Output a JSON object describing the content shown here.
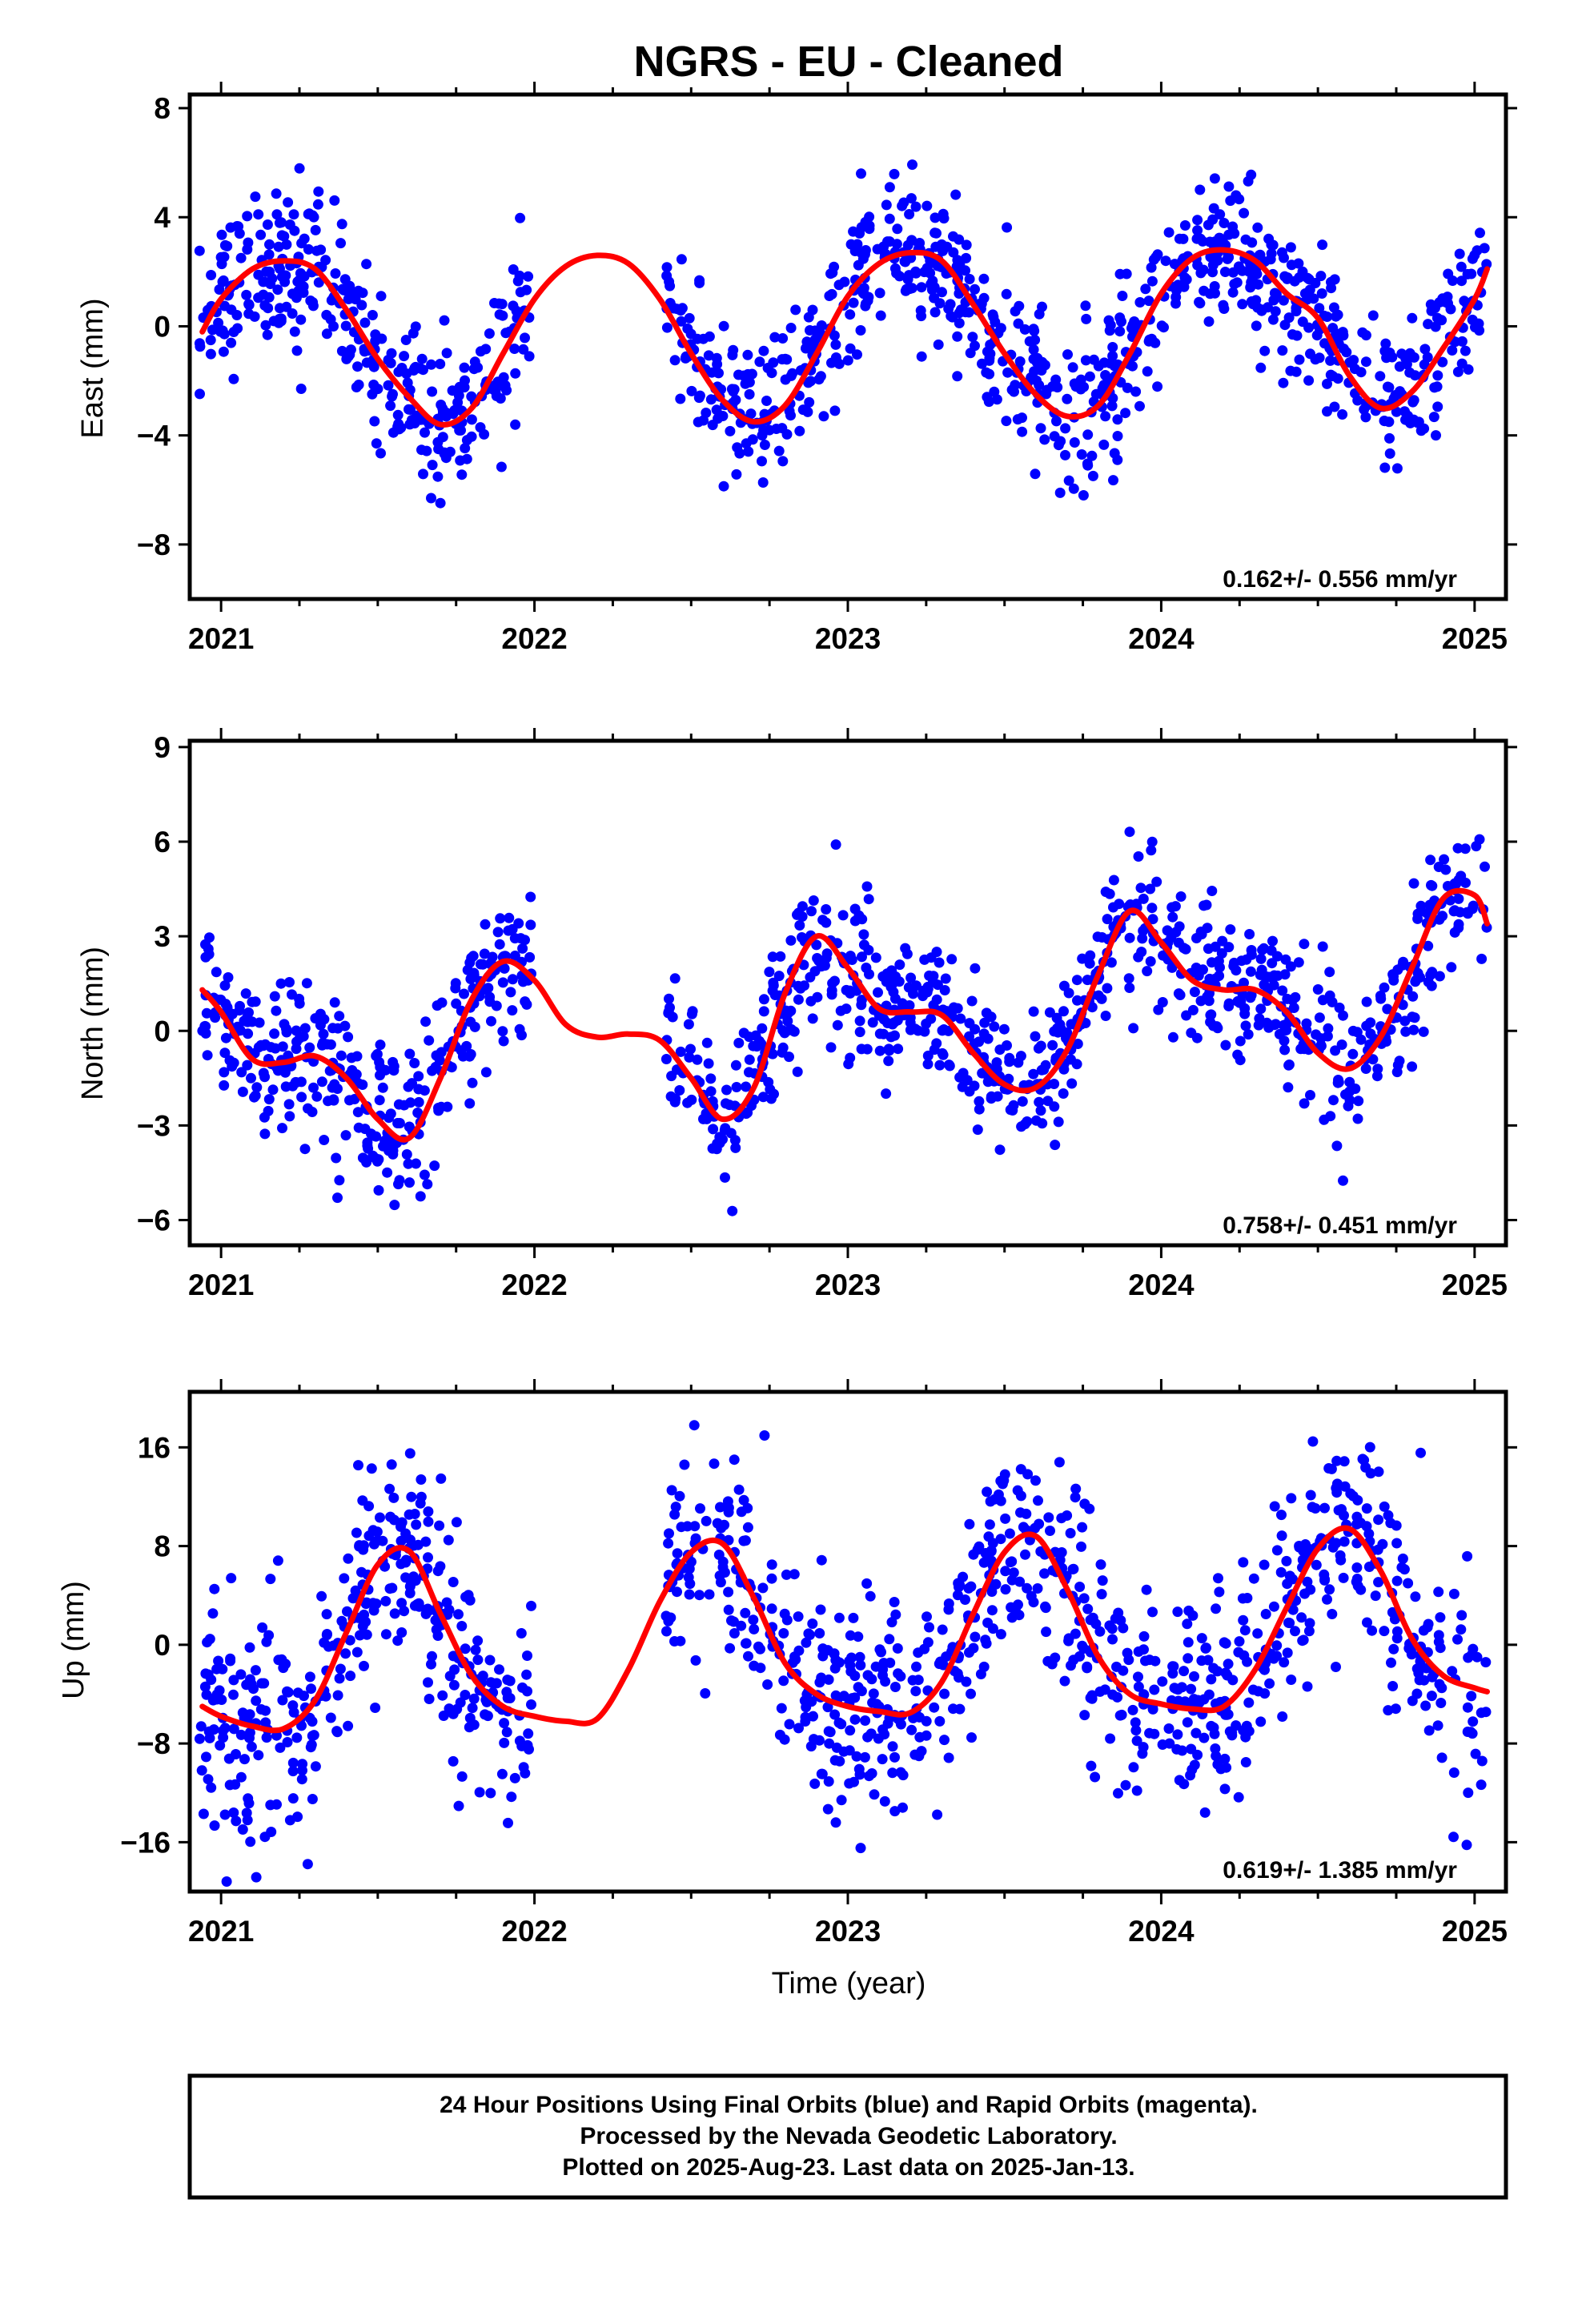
{
  "title": "NGRS  - EU - Cleaned",
  "x_axis_label": "Time (year)",
  "footer": {
    "line1": "24 Hour Positions Using Final Orbits (blue) and Rapid Orbits (magenta).",
    "line2": "Processed by the Nevada Geodetic Laboratory.",
    "line3": "Plotted on 2025-Aug-23. Last data on 2025-Jan-13."
  },
  "colors": {
    "data_points": "#0000ff",
    "model_curve": "#ff0000",
    "frame": "#000000"
  },
  "chart_data": [
    {
      "type": "scatter",
      "ylabel": "East (mm)",
      "rate_label": "0.162+/- 0.556 mm/yr",
      "xlim": [
        2020.9,
        2025.1
      ],
      "ylim": [
        -10,
        8.5
      ],
      "yticks": [
        "8",
        "4",
        "0",
        "−4",
        "−8"
      ],
      "ytick_values": [
        8,
        4,
        0,
        -4,
        -8
      ],
      "xticks": [
        "2021",
        "2022",
        "2023",
        "2024",
        "2025"
      ],
      "xtick_values": [
        2021,
        2022,
        2023,
        2024,
        2025
      ],
      "model": {
        "x": [
          2020.94,
          2021.0,
          2021.1,
          2021.2,
          2021.3,
          2021.4,
          2021.5,
          2021.6,
          2021.7,
          2021.8,
          2021.9,
          2022.0,
          2022.1,
          2022.2,
          2022.3,
          2022.4,
          2022.5,
          2022.6,
          2022.7,
          2022.8,
          2022.9,
          2023.0,
          2023.1,
          2023.2,
          2023.3,
          2023.4,
          2023.5,
          2023.6,
          2023.7,
          2023.8,
          2023.9,
          2024.0,
          2024.1,
          2024.2,
          2024.3,
          2024.4,
          2024.5,
          2024.6,
          2024.7,
          2024.8,
          2024.9,
          2025.0,
          2025.04
        ],
        "y": [
          -0.2,
          1.0,
          2.1,
          2.4,
          2.1,
          0.6,
          -1.2,
          -2.6,
          -3.6,
          -3.0,
          -1.0,
          1.0,
          2.2,
          2.6,
          2.3,
          1.0,
          -1.0,
          -2.7,
          -3.5,
          -2.9,
          -1.0,
          1.1,
          2.3,
          2.7,
          2.4,
          0.8,
          -1.0,
          -2.5,
          -3.3,
          -2.9,
          -1.0,
          1.2,
          2.5,
          2.8,
          2.4,
          1.2,
          0.3,
          -1.8,
          -3.0,
          -2.4,
          -0.8,
          1.0,
          2.1
        ]
      },
      "clusters": [
        {
          "x": [
            2020.93,
            2021.25
          ],
          "amp": 2.4,
          "phase": 0.0,
          "sd": 1.4,
          "n": 110
        },
        {
          "x": [
            2021.25,
            2021.75
          ],
          "amp": 2.4,
          "phase": 0.0,
          "sd": 1.3,
          "n": 160
        },
        {
          "x": [
            2021.75,
            2021.99
          ],
          "amp": 2.4,
          "phase": 0.0,
          "sd": 1.4,
          "n": 70
        },
        {
          "x": [
            2022.42,
            2022.99
          ],
          "amp": 2.6,
          "phase": 0.0,
          "sd": 1.3,
          "n": 170
        },
        {
          "x": [
            2023.0,
            2023.4
          ],
          "amp": 3.4,
          "phase": 0.9,
          "sd": 1.3,
          "n": 150
        },
        {
          "x": [
            2023.4,
            2023.99
          ],
          "amp": 3.3,
          "phase": -0.8,
          "sd": 1.5,
          "n": 180
        },
        {
          "x": [
            2024.0,
            2024.45
          ],
          "amp": 2.8,
          "phase": 0.8,
          "sd": 1.3,
          "n": 150
        },
        {
          "x": [
            2024.45,
            2025.04
          ],
          "amp": 2.8,
          "phase": -0.2,
          "sd": 1.4,
          "n": 170
        }
      ]
    },
    {
      "type": "scatter",
      "ylabel": "North (mm)",
      "rate_label": "0.758+/- 0.451 mm/yr",
      "xlim": [
        2020.9,
        2025.1
      ],
      "ylim": [
        -6.8,
        9.2
      ],
      "yticks": [
        "9",
        "6",
        "3",
        "0",
        "−3",
        "−6"
      ],
      "ytick_values": [
        9,
        6,
        3,
        0,
        -3,
        -6
      ],
      "xticks": [
        "2021",
        "2022",
        "2023",
        "2024",
        "2025"
      ],
      "xtick_values": [
        2021,
        2022,
        2023,
        2024,
        2025
      ],
      "model": {
        "x": [
          2020.94,
          2021.0,
          2021.1,
          2021.2,
          2021.3,
          2021.4,
          2021.5,
          2021.6,
          2021.7,
          2021.8,
          2021.9,
          2022.0,
          2022.1,
          2022.2,
          2022.3,
          2022.4,
          2022.5,
          2022.6,
          2022.7,
          2022.8,
          2022.9,
          2023.0,
          2023.1,
          2023.2,
          2023.3,
          2023.4,
          2023.5,
          2023.6,
          2023.7,
          2023.8,
          2023.9,
          2024.0,
          2024.1,
          2024.2,
          2024.3,
          2024.4,
          2024.5,
          2024.6,
          2024.7,
          2024.8,
          2024.9,
          2025.0,
          2025.04
        ],
        "y": [
          1.3,
          0.6,
          -0.9,
          -1.0,
          -0.8,
          -1.5,
          -2.8,
          -3.4,
          -1.5,
          1.0,
          2.2,
          1.6,
          0.2,
          -0.2,
          -0.1,
          -0.3,
          -1.5,
          -2.8,
          -1.8,
          1.2,
          3.0,
          2.0,
          0.7,
          0.6,
          0.5,
          -0.7,
          -1.7,
          -1.8,
          -0.6,
          1.8,
          3.8,
          2.8,
          1.6,
          1.3,
          1.3,
          0.6,
          -0.7,
          -1.2,
          -0.2,
          2.0,
          4.2,
          4.3,
          3.4
        ]
      },
      "clusters": [
        {
          "x": [
            2020.93,
            2021.35
          ],
          "amp": 0.0,
          "phase": 0.0,
          "sd": 1.1,
          "n": 130
        },
        {
          "x": [
            2021.35,
            2021.99
          ],
          "amp": 0.0,
          "phase": 0.0,
          "sd": 1.2,
          "n": 210
        },
        {
          "x": [
            2022.42,
            2022.75
          ],
          "amp": 0.0,
          "phase": 0.0,
          "sd": 1.1,
          "n": 90
        },
        {
          "x": [
            2022.75,
            2023.1
          ],
          "amp": 0.0,
          "phase": 0.0,
          "sd": 1.3,
          "n": 120
        },
        {
          "x": [
            2023.1,
            2023.7
          ],
          "amp": 0.0,
          "phase": 0.0,
          "sd": 1.1,
          "n": 200
        },
        {
          "x": [
            2023.7,
            2024.2
          ],
          "amp": 0.0,
          "phase": 0.0,
          "sd": 1.2,
          "n": 150
        },
        {
          "x": [
            2024.2,
            2024.75
          ],
          "amp": 0.0,
          "phase": 0.0,
          "sd": 1.1,
          "n": 160
        },
        {
          "x": [
            2024.75,
            2025.04
          ],
          "amp": 0.0,
          "phase": 0.0,
          "sd": 1.2,
          "n": 80
        }
      ]
    },
    {
      "type": "scatter",
      "ylabel": "Up (mm)",
      "rate_label": "0.619+/- 1.385 mm/yr",
      "xlim": [
        2020.9,
        2025.1
      ],
      "ylim": [
        -20,
        20.5
      ],
      "yticks": [
        "16",
        "8",
        "0",
        "−8",
        "−16"
      ],
      "ytick_values": [
        16,
        8,
        0,
        -8,
        -16
      ],
      "xticks": [
        "2021",
        "2022",
        "2023",
        "2024",
        "2025"
      ],
      "xtick_values": [
        2021,
        2022,
        2023,
        2024,
        2025
      ],
      "model": {
        "x": [
          2020.94,
          2021.0,
          2021.1,
          2021.2,
          2021.3,
          2021.4,
          2021.5,
          2021.6,
          2021.7,
          2021.8,
          2021.9,
          2022.0,
          2022.1,
          2022.2,
          2022.3,
          2022.4,
          2022.5,
          2022.6,
          2022.7,
          2022.8,
          2022.9,
          2023.0,
          2023.1,
          2023.2,
          2023.3,
          2023.4,
          2023.5,
          2023.6,
          2023.7,
          2023.8,
          2023.9,
          2024.0,
          2024.1,
          2024.2,
          2024.3,
          2024.4,
          2024.5,
          2024.6,
          2024.7,
          2024.8,
          2024.9,
          2025.0,
          2025.04
        ],
        "y": [
          -5.0,
          -5.8,
          -6.6,
          -6.8,
          -4.5,
          1.0,
          6.5,
          7.6,
          2.5,
          -2.5,
          -5.0,
          -5.8,
          -6.2,
          -6.0,
          -2.0,
          3.5,
          7.5,
          8.2,
          3.8,
          -1.5,
          -4.0,
          -5.0,
          -5.4,
          -5.5,
          -3.0,
          2.5,
          7.5,
          8.8,
          4.5,
          -1.0,
          -4.0,
          -4.8,
          -5.2,
          -5.0,
          -2.0,
          3.0,
          7.8,
          9.4,
          6.0,
          0.5,
          -2.5,
          -3.5,
          -3.8
        ]
      },
      "clusters": [
        {
          "x": [
            2020.93,
            2021.3
          ],
          "amp": 0.0,
          "phase": 0.0,
          "sd": 4.8,
          "n": 130
        },
        {
          "x": [
            2021.3,
            2021.99
          ],
          "amp": 0.0,
          "phase": 0.0,
          "sd": 4.2,
          "n": 230
        },
        {
          "x": [
            2022.42,
            2022.95
          ],
          "amp": 0.0,
          "phase": 0.0,
          "sd": 4.2,
          "n": 160
        },
        {
          "x": [
            2022.95,
            2023.45
          ],
          "amp": 0.0,
          "phase": 0.0,
          "sd": 4.5,
          "n": 170
        },
        {
          "x": [
            2023.45,
            2023.99
          ],
          "amp": 0.0,
          "phase": 0.0,
          "sd": 4.2,
          "n": 170
        },
        {
          "x": [
            2024.0,
            2024.45
          ],
          "amp": 0.0,
          "phase": 0.0,
          "sd": 4.5,
          "n": 150
        },
        {
          "x": [
            2024.45,
            2025.04
          ],
          "amp": 0.0,
          "phase": 0.0,
          "sd": 4.2,
          "n": 170
        }
      ]
    }
  ]
}
